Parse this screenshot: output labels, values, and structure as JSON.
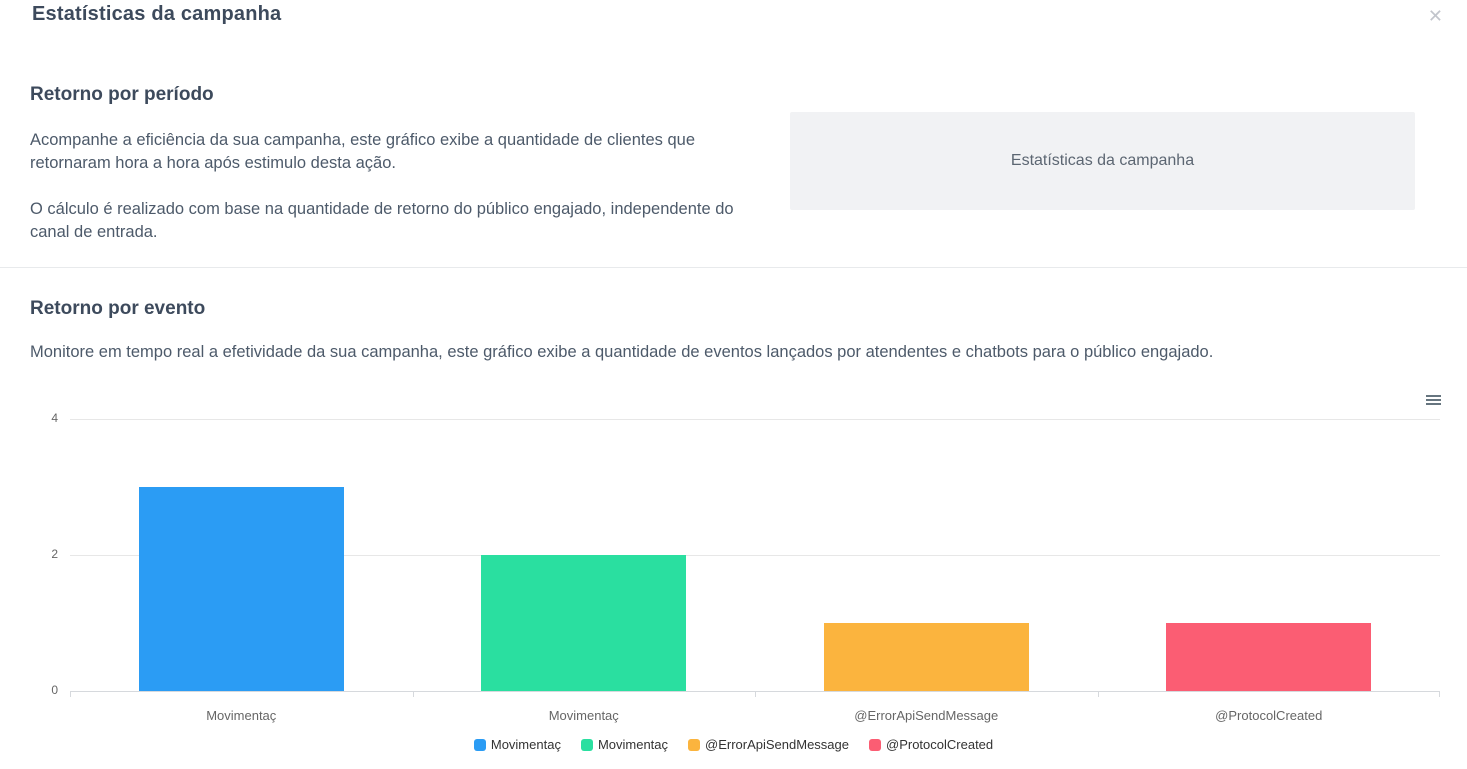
{
  "modal": {
    "title": "Estatísticas da campanha",
    "close_glyph": "✕"
  },
  "period_section": {
    "heading": "Retorno por período",
    "paragraph1": "Acompanhe a eficiência da sua campanha, este gráfico exibe a quantidade de clientes que retornaram hora a hora após estimulo desta ação.",
    "paragraph2": "O cálculo é realizado com base na quantidade de retorno do público engajado, independente do canal de entrada.",
    "preview_label": "Estatísticas da campanha"
  },
  "event_section": {
    "heading": "Retorno por evento",
    "paragraph": "Monitore em tempo real a efetividade da sua campanha, este gráfico exibe a quantidade de eventos lançados por atendentes e chatbots para o público engajado."
  },
  "chart_data": {
    "type": "bar",
    "title": "",
    "xlabel": "",
    "ylabel": "",
    "categories": [
      "Movimentaç",
      "Movimentaç",
      "@ErrorApiSendMessage",
      "@ProtocolCreated"
    ],
    "series": [
      {
        "name": "Movimentaç",
        "value": 3,
        "color": "#2B9CF4"
      },
      {
        "name": "Movimentaç",
        "value": 2,
        "color": "#2ADFA0"
      },
      {
        "name": "@ErrorApiSendMessage",
        "value": 1,
        "color": "#FBB43E"
      },
      {
        "name": "@ProtocolCreated",
        "value": 1,
        "color": "#FB5D73"
      }
    ],
    "ylim": [
      0,
      4
    ],
    "yticks": [
      0,
      2,
      4
    ],
    "grid": true,
    "legend_position": "bottom",
    "menu_icon": "hamburger-menu"
  }
}
